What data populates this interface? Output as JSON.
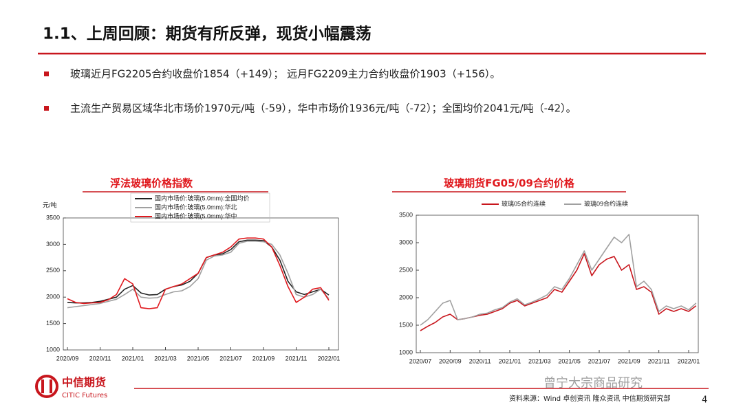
{
  "title": "1.1、上周回顾：期货有所反弹，现货小幅震荡",
  "bullets": [
    "玻璃近月FG2205合约收盘价1854（+149）； 远月FG2209主力合约收盘价1903（+156）。",
    "主流生产贸易区域华北市场价1970元/吨（-59），华中市场价1936元/吨（-72）；全国均价2041元/吨（-42）。"
  ],
  "logo": {
    "name": "中信期货",
    "english": "CITIC Futures"
  },
  "source": "资料来源：Wind 卓创资讯 隆众资讯 中信期货研究部",
  "watermark": "曾宁大宗商品研究",
  "page_number": "4",
  "chart_data": [
    {
      "type": "line",
      "title": "浮法玻璃价格指数",
      "y_label": "元/吨",
      "categories": [
        "2020/09",
        null,
        null,
        null,
        "2020/11",
        null,
        null,
        null,
        "2021/01",
        null,
        null,
        null,
        "2021/03",
        null,
        null,
        null,
        "2021/05",
        null,
        null,
        null,
        "2021/07",
        null,
        null,
        null,
        "2021/09",
        null,
        null,
        null,
        "2021/11",
        null,
        null,
        null,
        "2022/01"
      ],
      "ylim": [
        1000,
        3500
      ],
      "yticks": [
        1000,
        1500,
        2000,
        2500,
        3000,
        3500
      ],
      "series": [
        {
          "name": "国内市场价:玻璃(5.0mm):全国均价",
          "color": "#222222",
          "values": [
            1900,
            1890,
            1890,
            1900,
            1920,
            1960,
            2000,
            2150,
            2220,
            2080,
            2040,
            2050,
            2150,
            2200,
            2230,
            2300,
            2450,
            2750,
            2800,
            2820,
            2900,
            3050,
            3080,
            3080,
            3070,
            2950,
            2700,
            2300,
            2100,
            2050,
            2100,
            2150,
            2040
          ]
        },
        {
          "name": "国内市场价:玻璃(5.0mm):华北",
          "color": "#a0a0a0",
          "values": [
            1800,
            1820,
            1840,
            1860,
            1880,
            1920,
            1960,
            2050,
            2150,
            2000,
            1980,
            1990,
            2050,
            2100,
            2120,
            2200,
            2350,
            2700,
            2780,
            2800,
            2850,
            3020,
            3060,
            3060,
            3050,
            3000,
            2800,
            2450,
            2050,
            2000,
            2050,
            2150,
            1970
          ]
        },
        {
          "name": "国内市场价:玻璃(5.0mm):华中",
          "color": "#e0191e",
          "values": [
            1970,
            1900,
            1880,
            1890,
            1900,
            1950,
            2050,
            2350,
            2250,
            1800,
            1780,
            1800,
            2150,
            2200,
            2250,
            2350,
            2450,
            2750,
            2800,
            2850,
            2950,
            3100,
            3120,
            3120,
            3100,
            2950,
            2600,
            2200,
            1900,
            2000,
            2150,
            2180,
            1940
          ]
        }
      ]
    },
    {
      "type": "line",
      "title": "玻璃期货FG05/09合约价格",
      "categories": [
        "2020/07",
        null,
        null,
        null,
        "2020/09",
        null,
        null,
        null,
        "2020/11",
        null,
        null,
        null,
        "2021/01",
        null,
        null,
        null,
        "2021/03",
        null,
        null,
        null,
        "2021/05",
        null,
        null,
        null,
        "2021/07",
        null,
        null,
        null,
        "2021/09",
        null,
        null,
        null,
        "2021/11",
        null,
        null,
        null,
        "2022/01",
        null
      ],
      "ylim": [
        1000,
        3500
      ],
      "yticks": [
        1000,
        1500,
        2000,
        2500,
        3000,
        3500
      ],
      "series": [
        {
          "name": "玻璃05合约连续",
          "color": "#c8161d",
          "values": [
            1400,
            1480,
            1550,
            1650,
            1700,
            1600,
            1620,
            1650,
            1680,
            1700,
            1750,
            1800,
            1900,
            1950,
            1850,
            1900,
            1950,
            2000,
            2150,
            2100,
            2300,
            2500,
            2800,
            2400,
            2600,
            2700,
            2750,
            2500,
            2600,
            2150,
            2200,
            2100,
            1700,
            1800,
            1750,
            1800,
            1750,
            1854
          ]
        },
        {
          "name": "玻璃09合约连续",
          "color": "#a0a0a0",
          "values": [
            1500,
            1600,
            1750,
            1900,
            1950,
            1600,
            1620,
            1650,
            1700,
            1720,
            1780,
            1820,
            1920,
            1980,
            1870,
            1920,
            1980,
            2050,
            2200,
            2150,
            2350,
            2600,
            2850,
            2500,
            2700,
            2900,
            3100,
            3000,
            3150,
            2200,
            2300,
            2150,
            1750,
            1850,
            1800,
            1850,
            1780,
            1903
          ]
        }
      ]
    }
  ]
}
